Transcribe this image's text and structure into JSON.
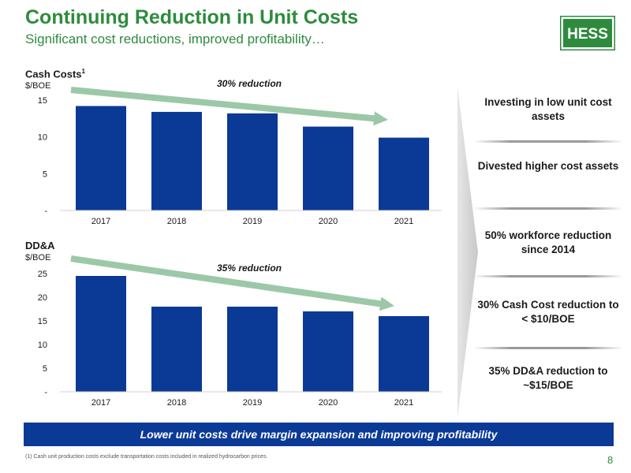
{
  "header": {
    "title": "Continuing Reduction in Unit Costs",
    "subtitle": "Significant cost reductions, improved profitability…",
    "logo_text": "HESS",
    "brand_color": "#2e8b3e",
    "bar_color": "#0b3a96"
  },
  "chart_data": [
    {
      "type": "bar",
      "title": "Cash Costs",
      "title_sup": "1",
      "ylabel": "$/BOE",
      "categories": [
        "2017",
        "2018",
        "2019",
        "2020",
        "2021"
      ],
      "values": [
        14.2,
        13.4,
        13.2,
        11.4,
        9.9
      ],
      "ylim": [
        0,
        15
      ],
      "yticks": [
        {
          "v": 15,
          "label": "15"
        },
        {
          "v": 10,
          "label": "10"
        },
        {
          "v": 5,
          "label": "5"
        },
        {
          "v": 0,
          "label": "-"
        }
      ],
      "annotation": "30% reduction"
    },
    {
      "type": "bar",
      "title": "DD&A",
      "ylabel": "$/BOE",
      "categories": [
        "2017",
        "2018",
        "2019",
        "2020",
        "2021"
      ],
      "values": [
        24.5,
        18.0,
        18.0,
        17.0,
        16.0
      ],
      "ylim": [
        0,
        25
      ],
      "yticks": [
        {
          "v": 25,
          "label": "25"
        },
        {
          "v": 20,
          "label": "20"
        },
        {
          "v": 15,
          "label": "15"
        },
        {
          "v": 10,
          "label": "10"
        },
        {
          "v": 5,
          "label": "5"
        },
        {
          "v": 0,
          "label": "-"
        }
      ],
      "annotation": "35% reduction"
    }
  ],
  "panel": {
    "items": [
      "Investing in low unit cost assets",
      "Divested higher cost assets",
      "50% workforce reduction since 2014",
      "30% Cash Cost reduction to < $10/BOE",
      "35% DD&A reduction to ~$15/BOE"
    ]
  },
  "banner": "Lower unit costs drive margin expansion and improving profitability",
  "footnote": "(1) Cash unit production costs exclude transportation costs included in realized hydrocarbon prices.",
  "page_number": "8"
}
